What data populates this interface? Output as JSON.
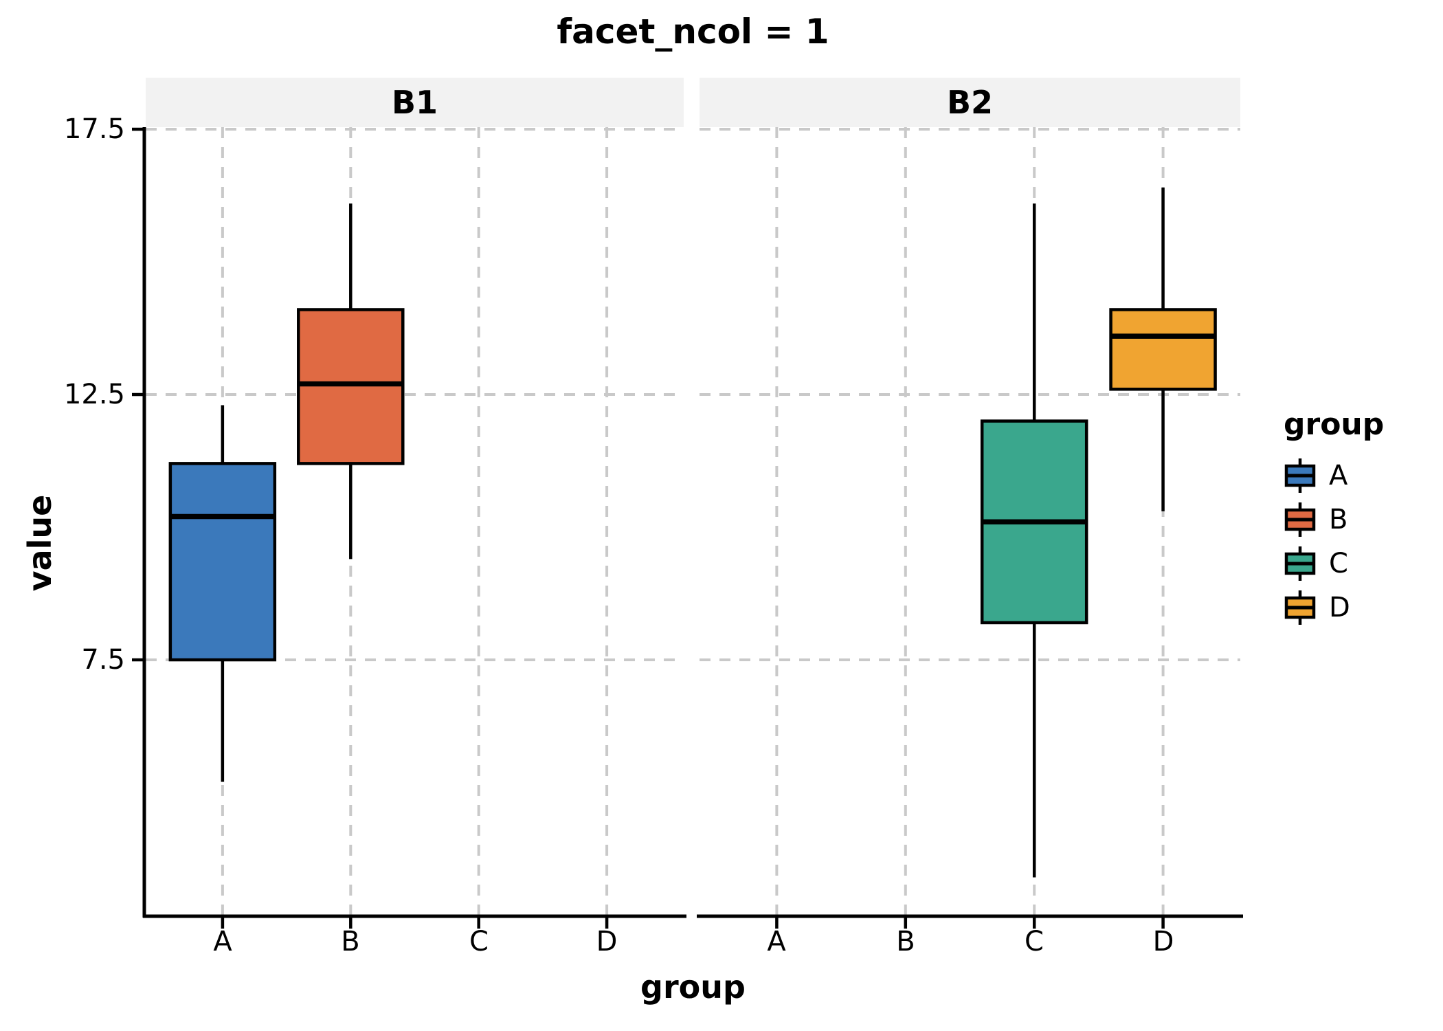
{
  "title": "facet_ncol = 1",
  "x_axis_title": "group",
  "y_axis_title": "value",
  "colors": {
    "A": "#3b79bb",
    "B": "#e06a43",
    "C": "#3aa78d",
    "D": "#f0a431"
  },
  "style": {
    "strip_bg": "#f2f2f2",
    "gridline_color": "#c9c9c9",
    "axis_color": "#000000",
    "box_border_color": "#000000"
  },
  "chart_data": {
    "type": "boxplot",
    "title": "facet_ncol = 1",
    "xlabel": "group",
    "ylabel": "value",
    "categories": [
      "A",
      "B",
      "C",
      "D"
    ],
    "yticks": [
      {
        "label": "17.5",
        "value": 17.5
      },
      {
        "label": "12.5",
        "value": 12.5
      },
      {
        "label": "7.5",
        "value": 7.5
      }
    ],
    "ylim_shown": [
      2.7,
      17.55
    ],
    "grid": "dashed",
    "legend_position": "right",
    "facets": [
      {
        "label": "B1",
        "boxes": [
          {
            "group": "A",
            "lower_whisker": 5.2,
            "q1": 7.5,
            "median": 10.2,
            "q3": 11.2,
            "upper_whisker": 12.3
          },
          {
            "group": "B",
            "lower_whisker": 9.4,
            "q1": 11.2,
            "median": 12.7,
            "q3": 14.1,
            "upper_whisker": 16.1
          }
        ]
      },
      {
        "label": "B2",
        "boxes": [
          {
            "group": "C",
            "lower_whisker": 3.4,
            "q1": 8.2,
            "median": 10.1,
            "q3": 12.0,
            "upper_whisker": 16.1
          },
          {
            "group": "D",
            "lower_whisker": 10.3,
            "q1": 12.6,
            "median": 13.6,
            "q3": 14.1,
            "upper_whisker": 16.4
          }
        ]
      }
    ]
  },
  "legend": {
    "title": "group",
    "entries": [
      {
        "label": "A",
        "color": "#3b79bb"
      },
      {
        "label": "B",
        "color": "#e06a43"
      },
      {
        "label": "C",
        "color": "#3aa78d"
      },
      {
        "label": "D",
        "color": "#f0a431"
      }
    ]
  }
}
